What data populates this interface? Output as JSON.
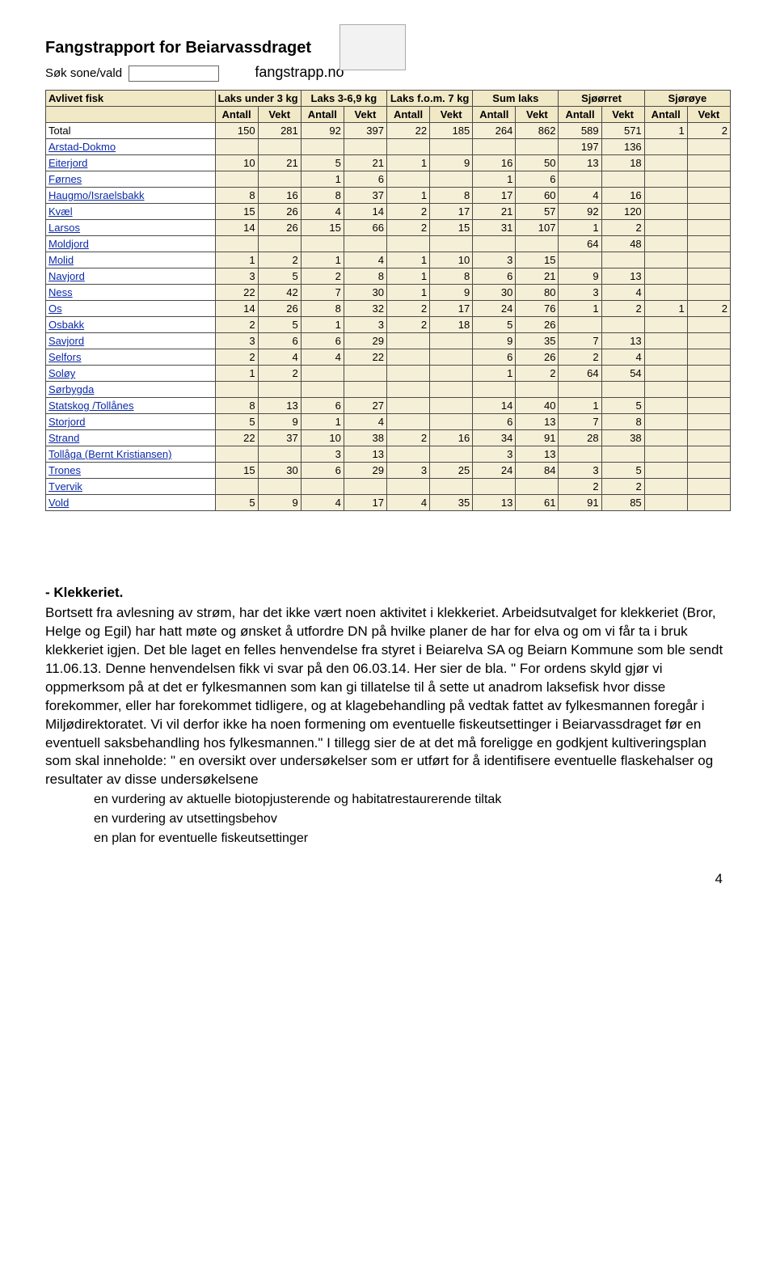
{
  "page": {
    "title": "Fangstrapport for Beiarvassdraget",
    "search_label": "Søk sone/vald",
    "site": "fangstrapp.no",
    "page_number": "4"
  },
  "table": {
    "label_col": "Avlivet fisk",
    "group_headers": [
      "Laks under 3 kg",
      "Laks 3-6,9 kg",
      "Laks f.o.m. 7 kg",
      "Sum laks",
      "Sjøørret",
      "Sjørøye"
    ],
    "sub_headers": [
      "Antall",
      "Vekt"
    ],
    "rows": [
      {
        "name": "Total",
        "vals": [
          "150",
          "281",
          "92",
          "397",
          "22",
          "185",
          "264",
          "862",
          "589",
          "571",
          "1",
          "2"
        ],
        "total": true
      },
      {
        "name": "Arstad-Dokmo",
        "vals": [
          "",
          "",
          "",
          "",
          "",
          "",
          "",
          "",
          "197",
          "136",
          "",
          ""
        ]
      },
      {
        "name": "Eiterjord",
        "vals": [
          "10",
          "21",
          "5",
          "21",
          "1",
          "9",
          "16",
          "50",
          "13",
          "18",
          "",
          ""
        ]
      },
      {
        "name": "Førnes",
        "vals": [
          "",
          "",
          "1",
          "6",
          "",
          "",
          "1",
          "6",
          "",
          "",
          "",
          ""
        ]
      },
      {
        "name": "Haugmo/Israelsbakk",
        "vals": [
          "8",
          "16",
          "8",
          "37",
          "1",
          "8",
          "17",
          "60",
          "4",
          "16",
          "",
          ""
        ]
      },
      {
        "name": "Kvæl",
        "vals": [
          "15",
          "26",
          "4",
          "14",
          "2",
          "17",
          "21",
          "57",
          "92",
          "120",
          "",
          ""
        ]
      },
      {
        "name": "Larsos",
        "vals": [
          "14",
          "26",
          "15",
          "66",
          "2",
          "15",
          "31",
          "107",
          "1",
          "2",
          "",
          ""
        ]
      },
      {
        "name": "Moldjord",
        "vals": [
          "",
          "",
          "",
          "",
          "",
          "",
          "",
          "",
          "64",
          "48",
          "",
          ""
        ]
      },
      {
        "name": "Molid",
        "vals": [
          "1",
          "2",
          "1",
          "4",
          "1",
          "10",
          "3",
          "15",
          "",
          "",
          "",
          ""
        ]
      },
      {
        "name": "Navjord",
        "vals": [
          "3",
          "5",
          "2",
          "8",
          "1",
          "8",
          "6",
          "21",
          "9",
          "13",
          "",
          ""
        ]
      },
      {
        "name": "Ness",
        "vals": [
          "22",
          "42",
          "7",
          "30",
          "1",
          "9",
          "30",
          "80",
          "3",
          "4",
          "",
          ""
        ]
      },
      {
        "name": "Os",
        "vals": [
          "14",
          "26",
          "8",
          "32",
          "2",
          "17",
          "24",
          "76",
          "1",
          "2",
          "1",
          "2"
        ]
      },
      {
        "name": "Osbakk",
        "vals": [
          "2",
          "5",
          "1",
          "3",
          "2",
          "18",
          "5",
          "26",
          "",
          "",
          "",
          ""
        ]
      },
      {
        "name": "Savjord",
        "vals": [
          "3",
          "6",
          "6",
          "29",
          "",
          "",
          "9",
          "35",
          "7",
          "13",
          "",
          ""
        ]
      },
      {
        "name": "Selfors",
        "vals": [
          "2",
          "4",
          "4",
          "22",
          "",
          "",
          "6",
          "26",
          "2",
          "4",
          "",
          ""
        ]
      },
      {
        "name": "Soløy",
        "vals": [
          "1",
          "2",
          "",
          "",
          "",
          "",
          "1",
          "2",
          "64",
          "54",
          "",
          ""
        ]
      },
      {
        "name": "Sørbygda",
        "vals": [
          "",
          "",
          "",
          "",
          "",
          "",
          "",
          "",
          "",
          "",
          "",
          ""
        ]
      },
      {
        "name": "Statskog /Tollånes",
        "vals": [
          "8",
          "13",
          "6",
          "27",
          "",
          "",
          "14",
          "40",
          "1",
          "5",
          "",
          ""
        ]
      },
      {
        "name": "Storjord",
        "vals": [
          "5",
          "9",
          "1",
          "4",
          "",
          "",
          "6",
          "13",
          "7",
          "8",
          "",
          ""
        ]
      },
      {
        "name": "Strand",
        "vals": [
          "22",
          "37",
          "10",
          "38",
          "2",
          "16",
          "34",
          "91",
          "28",
          "38",
          "",
          ""
        ]
      },
      {
        "name": "Tollåga (Bernt Kristiansen)",
        "vals": [
          "",
          "",
          "3",
          "13",
          "",
          "",
          "3",
          "13",
          "",
          "",
          "",
          ""
        ]
      },
      {
        "name": "Trones",
        "vals": [
          "15",
          "30",
          "6",
          "29",
          "3",
          "25",
          "24",
          "84",
          "3",
          "5",
          "",
          ""
        ]
      },
      {
        "name": "Tvervik",
        "vals": [
          "",
          "",
          "",
          "",
          "",
          "",
          "",
          "",
          "2",
          "2",
          "",
          ""
        ]
      },
      {
        "name": "Vold",
        "vals": [
          "5",
          "9",
          "4",
          "17",
          "4",
          "35",
          "13",
          "61",
          "91",
          "85",
          "",
          ""
        ]
      }
    ]
  },
  "body": {
    "heading": "-   Klekkeriet.",
    "para": "Bortsett fra avlesning av strøm, har det ikke vært noen aktivitet i klekkeriet. Arbeidsutvalget for klekkeriet (Bror, Helge og Egil) har hatt møte og ønsket å utfordre DN på hvilke planer de har for elva og om vi får ta i bruk klekkeriet igjen. Det ble laget en felles henvendelse fra styret i Beiarelva SA og Beiarn Kommune som ble sendt 11.06.13. Denne henvendelsen fikk vi svar på den 06.03.14. Her sier de bla. \" For ordens skyld gjør vi oppmerksom på at det er fylkesmannen som kan gi tillatelse til å sette ut anadrom laksefisk hvor disse forekommer, eller har forekommet tidligere, og at klagebehandling på vedtak fattet av fylkesmannen foregår i Miljødirektoratet. Vi vil derfor ikke ha noen formening om eventuelle fiskeutsettinger i Beiarvassdraget før en eventuell saksbehandling hos fylkesmannen.\" I tillegg sier de at det må foreligge en godkjent kultiveringsplan som skal inneholde: \" en oversikt over undersøkelser som er utført for å identifisere eventuelle flaskehalser og resultater av disse undersøkelsene",
    "bullets": [
      "en vurdering av aktuelle biotopjusterende og habitatrestaurerende tiltak",
      "en vurdering av utsettingsbehov",
      "en plan for eventuelle fiskeutsettinger"
    ]
  }
}
